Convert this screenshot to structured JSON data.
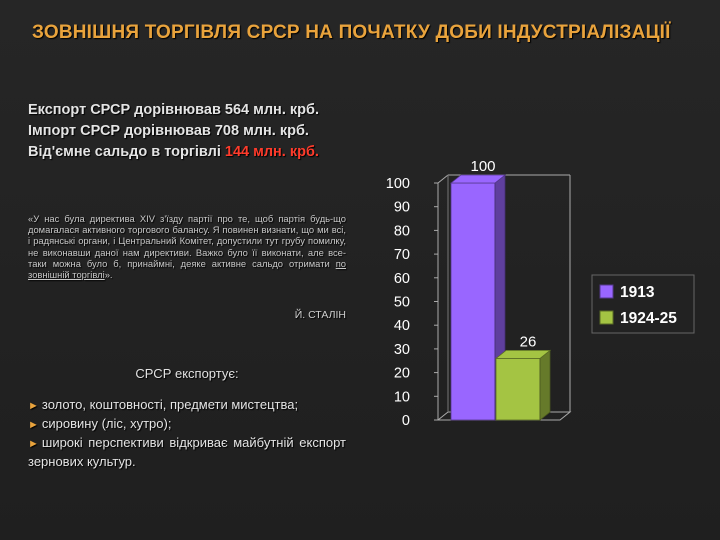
{
  "slide": {
    "title": "ЗОВНІШНЯ ТОРГІВЛЯ СРСР НА ПОЧАТКУ ДОБИ ІНДУСТРІАЛІЗАЦІЇ",
    "stats": {
      "export": "Експорт СРСР дорівнював 564 млн. крб.",
      "import": "Імпорт СРСР дорівнював 708 млн. крб.",
      "balance_label": "Від'ємне сальдо в торгівлі",
      "balance_value": "144 млн. крб."
    },
    "quote": {
      "text": "«У нас була директива XIV з'їзду партії про те, щоб партія будь-що домагалася активного торгового балансу. Я повинен визнати, що ми всі, і радянські органи, і Центральний Комітет, допустили тут грубу помилку, не виконавши даної нам директиви. Важко було її виконати, але все-таки можна було б, принаймні, деяке активне сальдо отримати ",
      "underlined": "по зовнішній торгівлі",
      "tail": "».",
      "author": "Й. СТАЛІН"
    },
    "exports": {
      "heading": "СРСР експортує:",
      "items": [
        "золото, коштовності, предмети мистецтва;",
        "сировину (ліс, хутро);",
        "широкі перспективи відкриває майбутній експорт зернових культур."
      ]
    }
  },
  "colors": {
    "title": "#e9a33c",
    "negative": "#ff3b2b",
    "series_1913": "#9966ff",
    "series_1924": "#a4c443"
  },
  "chart_data": {
    "type": "bar",
    "chart_style": "3d-column",
    "categories": [
      ""
    ],
    "series": [
      {
        "name": "1913",
        "values": [
          100
        ],
        "color": "#9966ff"
      },
      {
        "name": "1924-25",
        "values": [
          26
        ],
        "color": "#a4c443"
      }
    ],
    "data_labels": [
      "100",
      "26"
    ],
    "ylim": [
      0,
      100
    ],
    "yticks": [
      0,
      10,
      20,
      30,
      40,
      50,
      60,
      70,
      80,
      90,
      100
    ],
    "ytick_labels": [
      "0",
      "10",
      "20",
      "30",
      "40",
      "50",
      "60",
      "70",
      "80",
      "90",
      "100"
    ],
    "legend_position": "right",
    "grid": false
  }
}
